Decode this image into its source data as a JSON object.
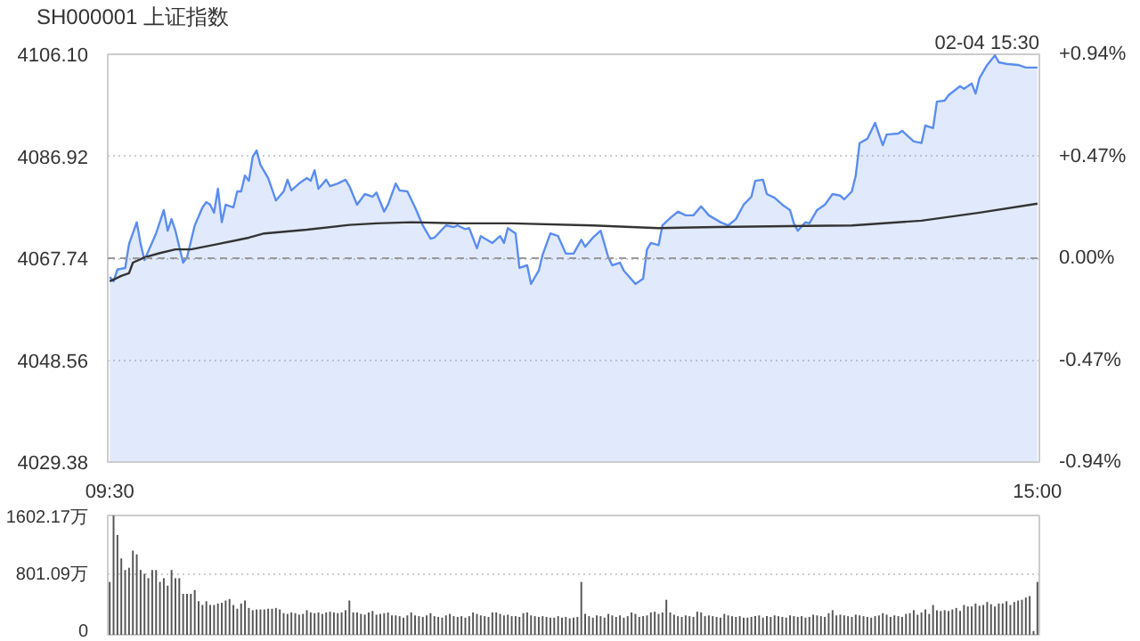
{
  "chart_data": [
    {
      "type": "line",
      "title": "SH000001 上证指数",
      "annotations": [
        "02-04 15:30"
      ],
      "categories": [
        "09:30",
        null,
        null,
        null,
        null,
        null,
        null,
        null,
        null,
        null,
        null,
        null,
        null,
        null,
        null,
        null,
        null,
        null,
        null,
        null,
        null,
        null,
        null,
        null,
        null,
        null,
        null,
        null,
        null,
        null,
        null,
        null,
        null,
        null,
        null,
        null,
        null,
        null,
        null,
        null,
        null,
        null,
        null,
        null,
        null,
        null,
        null,
        null,
        null,
        null,
        null,
        null,
        null,
        null,
        null,
        null,
        null,
        null,
        null,
        null,
        null,
        null,
        null,
        null,
        null,
        null,
        null,
        null,
        null,
        null,
        null,
        null,
        null,
        null,
        null,
        null,
        null,
        null,
        null,
        null,
        null,
        null,
        null,
        null,
        null,
        null,
        null,
        null,
        null,
        null,
        null,
        null,
        null,
        null,
        null,
        null,
        null,
        null,
        null,
        null,
        null,
        null,
        null,
        null,
        null,
        null,
        null,
        null,
        null,
        null,
        null,
        null,
        null,
        null,
        null,
        null,
        null,
        null,
        null,
        null,
        null,
        null,
        null,
        null,
        null,
        null,
        null,
        null,
        null,
        null,
        null,
        null,
        null,
        null,
        null,
        null,
        null,
        null,
        null,
        null,
        null,
        null,
        null,
        null,
        null,
        null,
        null,
        null,
        null,
        null,
        null,
        null,
        null,
        null,
        null,
        null,
        null,
        null,
        null,
        null,
        null,
        null,
        null,
        null,
        null,
        null,
        null,
        null,
        null,
        null,
        null,
        null,
        null,
        null,
        null,
        null,
        null,
        null,
        null,
        null,
        null,
        null,
        null,
        null,
        null,
        null,
        null,
        null,
        null,
        null,
        null,
        null,
        null,
        null,
        null,
        null,
        null,
        null,
        null,
        null,
        null,
        null,
        null,
        null,
        null,
        null,
        null,
        null,
        null,
        null,
        null,
        null,
        null,
        null,
        null,
        null,
        null,
        null,
        null,
        null,
        null,
        null,
        null,
        null,
        null,
        null,
        null,
        null,
        null,
        null,
        null,
        null,
        null,
        null,
        null,
        null,
        null,
        null,
        null,
        null,
        "15:00"
      ],
      "ylim": [
        4029.38,
        4106.1
      ],
      "yticks": [
        {
          "value": 4029.38,
          "label": "4029.38"
        },
        {
          "value": 4048.56,
          "label": "4048.56"
        },
        {
          "value": 4067.74,
          "label": "4067.74"
        },
        {
          "value": 4086.92,
          "label": "4086.92"
        },
        {
          "value": 4106.1,
          "label": "4106.10"
        }
      ],
      "y2lim": [
        -0.94,
        0.94
      ],
      "y2ticks": [
        {
          "value": -0.94,
          "label": "-0.94%"
        },
        {
          "value": -0.47,
          "label": "-0.47%"
        },
        {
          "value": 0,
          "label": "0.00%"
        },
        {
          "value": 0.47,
          "label": "+0.47%"
        },
        {
          "value": 0.94,
          "label": "+0.94%"
        }
      ],
      "grid": "y",
      "ref_lines": [
        {
          "axis": "y",
          "value": 4067.74,
          "label": null,
          "color": "#999999",
          "line_style": "dashed"
        }
      ],
      "series": [
        {
          "type": "area",
          "color": "#5b8def",
          "values": [
            4064.2,
            4063.4,
            4065.6,
            null,
            4065.9,
            4070.4,
            null,
            4074.5,
            4070.4,
            4067.4,
            null,
            null,
            4072.4,
            null,
            4076.8,
            4072.9,
            4075.1,
            4072.9,
            null,
            4066.9,
            4067.9,
            null,
            4073.9,
            null,
            4077.3,
            4078.3,
            4077.8,
            4076.3,
            4080.8,
            4074.5,
            4077.8,
            null,
            4077.3,
            4080.3,
            4080.3,
            4083.3,
            4082.3,
            4086.8,
            4088.0,
            4085.3,
            null,
            4082.8,
            null,
            4078.6,
            null,
            4080.3,
            4082.5,
            4080.5,
            null,
            4081.8,
            null,
            4082.8,
            4082.3,
            4084.3,
            4080.8,
            null,
            4082.5,
            4081.3,
            null,
            4081.8,
            null,
            4082.5,
            4081.3,
            null,
            4077.8,
            null,
            4079.8,
            null,
            4079.3,
            4080.1,
            null,
            4076.5,
            4077.8,
            null,
            4081.8,
            4080.5,
            null,
            4080.3,
            null,
            4077.3,
            null,
            4073.9,
            null,
            4071.4,
            4071.6,
            null,
            null,
            4073.9,
            null,
            4073.6,
            4073.9,
            null,
            4073.2,
            4073.4,
            null,
            4069.6,
            4071.9,
            null,
            null,
            4070.6,
            null,
            4071.9,
            4070.6,
            4073.4,
            null,
            4072.4,
            4065.9,
            null,
            4066.4,
            4062.9,
            null,
            4065.4,
            4068.4,
            null,
            4072.4,
            null,
            4071.9,
            null,
            4068.6,
            null,
            4068.6,
            null,
            4071.2,
            4069.9,
            null,
            4071.6,
            null,
            4072.9,
            null,
            4067.9,
            4066.4,
            null,
            4066.9,
            4065.4,
            null,
            null,
            4062.9,
            null,
            4063.9,
            4069.4,
            4070.6,
            null,
            4070.2,
            4073.9,
            null,
            4075.3,
            null,
            4076.5,
            null,
            4075.8,
            null,
            4075.8,
            null,
            4077.5,
            null,
            4075.8,
            null,
            null,
            4074.5,
            null,
            4073.9,
            null,
            4075.1,
            null,
            4077.8,
            null,
            4079.3,
            4082.3,
            null,
            4082.5,
            4079.8,
            null,
            4079.1,
            null,
            4077.8,
            null,
            4076.8,
            4074.3,
            4072.9,
            null,
            4074.5,
            4074.3,
            null,
            4076.8,
            null,
            4077.8,
            null,
            4079.8,
            null,
            4079.5,
            4078.8,
            null,
            4080.3,
            4083.3,
            4089.4,
            null,
            4090.2,
            null,
            4093.2,
            null,
            4089.0,
            4091.0,
            null,
            null,
            4091.2,
            4091.7,
            null,
            null,
            4089.7,
            null,
            4089.4,
            4092.7,
            null,
            4092.2,
            4097.2,
            null,
            4097.4,
            4098.4,
            null,
            null,
            4100.1,
            4099.6,
            null,
            4100.6,
            4098.7,
            4101.6,
            null,
            4104.1,
            null,
            4105.9,
            4104.6,
            null,
            4104.3,
            null,
            null,
            4104.1,
            null,
            4103.6,
            null,
            null,
            4103.6
          ]
        },
        {
          "type": "line",
          "color": "#333333",
          "values": [
            4063.4,
            4063.7,
            null,
            4064.4,
            null,
            4064.9,
            4066.9,
            null,
            null,
            4067.9,
            null,
            null,
            null,
            4068.7,
            null,
            null,
            null,
            4069.4,
            null,
            null,
            null,
            4069.4,
            null,
            null,
            null,
            null,
            null,
            null,
            4070.4,
            null,
            null,
            null,
            null,
            null,
            null,
            null,
            4071.6,
            null,
            null,
            null,
            4072.4,
            null,
            null,
            null,
            null,
            null,
            null,
            null,
            null,
            null,
            null,
            4073.1,
            null,
            null,
            null,
            null,
            null,
            null,
            null,
            null,
            null,
            null,
            4074.0,
            null,
            null,
            null,
            null,
            null,
            null,
            4074.3,
            null,
            null,
            null,
            null,
            null,
            null,
            null,
            null,
            4074.5,
            null,
            null,
            null,
            null,
            null,
            null,
            null,
            null,
            null,
            null,
            null,
            4074.3,
            null,
            null,
            null,
            null,
            null,
            null,
            null,
            null,
            null,
            null,
            null,
            null,
            null,
            4074.3,
            null,
            null,
            null,
            null,
            null,
            null,
            null,
            null,
            null,
            null,
            null,
            null,
            null,
            null,
            null,
            null,
            null,
            null,
            null,
            null,
            4073.9,
            null,
            null,
            null,
            null,
            null,
            null,
            null,
            null,
            null,
            null,
            null,
            null,
            null,
            null,
            null,
            null,
            4073.4,
            null,
            null,
            null,
            null,
            null,
            null,
            null,
            null,
            null,
            null,
            null,
            null,
            null,
            null,
            4073.6,
            null,
            null,
            null,
            null,
            null,
            null,
            null,
            null,
            null,
            null,
            null,
            null,
            null,
            null,
            null,
            null,
            null,
            null,
            null,
            null,
            null,
            null,
            4073.8,
            null,
            null,
            null,
            null,
            null,
            null,
            null,
            null,
            null,
            null,
            null,
            4073.9,
            null,
            null,
            null,
            null,
            null,
            null,
            null,
            null,
            null,
            null,
            null,
            null,
            null,
            null,
            null,
            null,
            null,
            4074.8,
            null,
            null,
            null,
            null,
            null,
            null,
            null,
            null,
            null,
            null,
            null,
            null,
            null,
            null,
            4076.3,
            null,
            null,
            null,
            null,
            null,
            null,
            null,
            null,
            null,
            null,
            null,
            null,
            null,
            null,
            4078.0
          ]
        }
      ]
    },
    {
      "type": "bar",
      "color": "#555555",
      "tick_labels": "y",
      "grid": "y",
      "categories": [
        null,
        null,
        null,
        null,
        null,
        null,
        null,
        null,
        null,
        null,
        null,
        null,
        null,
        null,
        null,
        null,
        null,
        null,
        null,
        null,
        null,
        null,
        null,
        null,
        null,
        null,
        null,
        null,
        null,
        null,
        null,
        null,
        null,
        null,
        null,
        null,
        null,
        null,
        null,
        null,
        null,
        null,
        null,
        null,
        null,
        null,
        null,
        null,
        null,
        null,
        null,
        null,
        null,
        null,
        null,
        null,
        null,
        null,
        null,
        null,
        null,
        null,
        null,
        null,
        null,
        null,
        null,
        null,
        null,
        null,
        null,
        null,
        null,
        null,
        null,
        null,
        null,
        null,
        null,
        null,
        null,
        null,
        null,
        null,
        null,
        null,
        null,
        null,
        null,
        null,
        null,
        null,
        null,
        null,
        null,
        null,
        null,
        null,
        null,
        null,
        null,
        null,
        null,
        null,
        null,
        null,
        null,
        null,
        null,
        null,
        null,
        null,
        null,
        null,
        null,
        null,
        null,
        null,
        null,
        null,
        null,
        null,
        null,
        null,
        null,
        null,
        null,
        null,
        null,
        null,
        null,
        null,
        null,
        null,
        null,
        null,
        null,
        null,
        null,
        null,
        null,
        null,
        null,
        null,
        null,
        null,
        null,
        null,
        null,
        null,
        null,
        null,
        null,
        null,
        null,
        null,
        null,
        null,
        null,
        null,
        null,
        null,
        null,
        null,
        null,
        null,
        null,
        null,
        null,
        null,
        null,
        null,
        null,
        null,
        null,
        null,
        null,
        null,
        null,
        null,
        null,
        null,
        null,
        null,
        null,
        null,
        null,
        null,
        null,
        null,
        null,
        null,
        null,
        null,
        null,
        null,
        null,
        null,
        null,
        null,
        null,
        null,
        null,
        null,
        null,
        null,
        null,
        null,
        null,
        null,
        null,
        null,
        null,
        null,
        null,
        null,
        null,
        null,
        null,
        null,
        null,
        null,
        null,
        null,
        null,
        null,
        null,
        null,
        null,
        null,
        null,
        null,
        null,
        null,
        null,
        null,
        null,
        null,
        null,
        null,
        null
      ],
      "ylim": [
        0,
        1602.17
      ],
      "yticks": [
        0,
        {
          "value": 801.09,
          "label": "801.09万"
        },
        {
          "value": 1602.17,
          "label": "1602.17万"
        }
      ],
      "values": [
        710,
        1600,
        1340,
        1025,
        870,
        900,
        1130,
        1080,
        870,
        820,
        760,
        870,
        870,
        710,
        760,
        660,
        870,
        760,
        760,
        550,
        550,
        550,
        600,
        450,
        400,
        450,
        400,
        400,
        420,
        430,
        460,
        480,
        400,
        350,
        420,
        460,
        360,
        330,
        340,
        340,
        340,
        350,
        350,
        360,
        340,
        290,
        280,
        300,
        290,
        270,
        280,
        330,
        300,
        290,
        300,
        280,
        300,
        310,
        300,
        290,
        300,
        330,
        460,
        300,
        300,
        280,
        270,
        300,
        320,
        270,
        280,
        290,
        300,
        260,
        260,
        250,
        230,
        260,
        300,
        260,
        250,
        240,
        260,
        290,
        250,
        240,
        230,
        260,
        280,
        250,
        240,
        250,
        230,
        250,
        300,
        280,
        260,
        250,
        240,
        300,
        300,
        280,
        260,
        270,
        250,
        250,
        240,
        290,
        300,
        260,
        250,
        240,
        250,
        240,
        230,
        230,
        250,
        230,
        240,
        220,
        230,
        240,
        710,
        280,
        250,
        230,
        260,
        250,
        230,
        280,
        260,
        240,
        260,
        230,
        250,
        300,
        280,
        240,
        250,
        260,
        300,
        310,
        280,
        300,
        470,
        300,
        270,
        250,
        240,
        260,
        250,
        240,
        310,
        300,
        250,
        260,
        250,
        240,
        230,
        280,
        260,
        250,
        240,
        250,
        230,
        230,
        240,
        250,
        260,
        230,
        250,
        240,
        260,
        250,
        240,
        230,
        260,
        250,
        240,
        250,
        230,
        240,
        270,
        260,
        250,
        240,
        290,
        330,
        260,
        270,
        260,
        250,
        240,
        270,
        260,
        250,
        240,
        230,
        250,
        260,
        290,
        270,
        240,
        260,
        250,
        240,
        280,
        290,
        330,
        270,
        300,
        340,
        280,
        400,
        330,
        320,
        330,
        320,
        340,
        360,
        320,
        400,
        380,
        380,
        420,
        390,
        400,
        440,
        410,
        380,
        420,
        420,
        450,
        400,
        440,
        460,
        470,
        500,
        520,
        50,
        710
      ]
    }
  ]
}
